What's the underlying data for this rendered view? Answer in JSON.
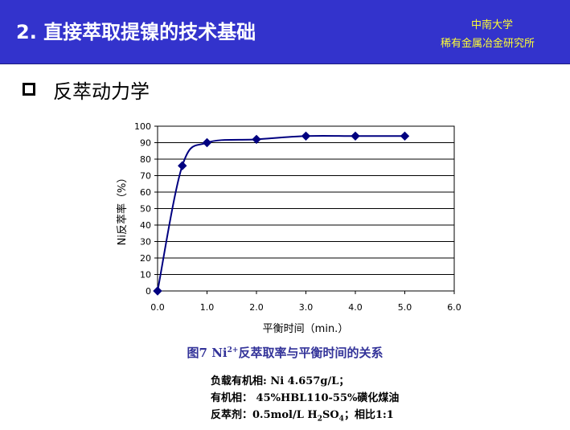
{
  "header": {
    "title": "2. 直接萃取提镍的技术基础",
    "org_line1": "中南大学",
    "org_line2": "稀有金属冶金研究所"
  },
  "section": {
    "title": "反萃动力学"
  },
  "chart_data": {
    "type": "line",
    "x": [
      0.0,
      0.5,
      1.0,
      2.0,
      3.0,
      4.0,
      5.0
    ],
    "y": [
      0,
      76,
      90,
      92,
      94,
      94,
      94
    ],
    "xlabel": "平衡时间（min.）",
    "ylabel": "Ni反萃率（%）",
    "xlim": [
      0,
      6
    ],
    "ylim": [
      0,
      100
    ],
    "x_ticks": [
      "0.0",
      "1.0",
      "2.0",
      "3.0",
      "4.0",
      "5.0",
      "6.0"
    ],
    "y_ticks": [
      "0",
      "10",
      "20",
      "30",
      "40",
      "50",
      "60",
      "70",
      "80",
      "90",
      "100"
    ],
    "grid": "horizontal",
    "marker": "diamond",
    "color": "#000080"
  },
  "caption": {
    "prefix": "图7 Ni",
    "sup": "2+",
    "suffix": "反萃取率与平衡时间的关系"
  },
  "notes": {
    "line1": "负载有机相: Ni 4.657g/L；",
    "line2": "有机相： 45%HBL110-55%磺化煤油",
    "line3_prefix": "反萃剂：0.5mol/L H",
    "line3_sub1": "2",
    "line3_mid": "SO",
    "line3_sub2": "4",
    "line3_suffix": "；相比1:1"
  }
}
